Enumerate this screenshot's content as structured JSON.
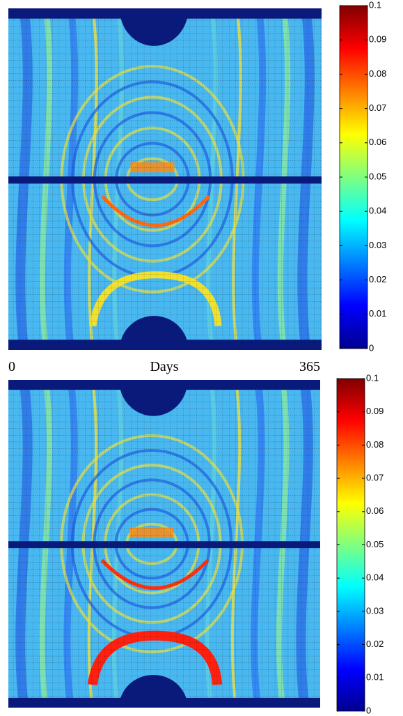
{
  "chart_data": [
    {
      "type": "heatmap",
      "colorbar_lim": [
        0,
        0.1
      ],
      "colorbar_ticks": [
        0,
        0.01,
        0.02,
        0.03,
        0.04,
        0.05,
        0.06,
        0.07,
        0.08,
        0.09,
        0.1
      ]
    },
    {
      "type": "heatmap",
      "xlabel": "Days",
      "xlim": [
        0,
        365
      ],
      "xticks": [
        0,
        365
      ],
      "colorbar_lim": [
        0,
        0.1
      ],
      "colorbar_ticks": [
        0,
        0.01,
        0.02,
        0.03,
        0.04,
        0.05,
        0.06,
        0.07,
        0.08,
        0.09,
        0.1
      ]
    }
  ]
}
